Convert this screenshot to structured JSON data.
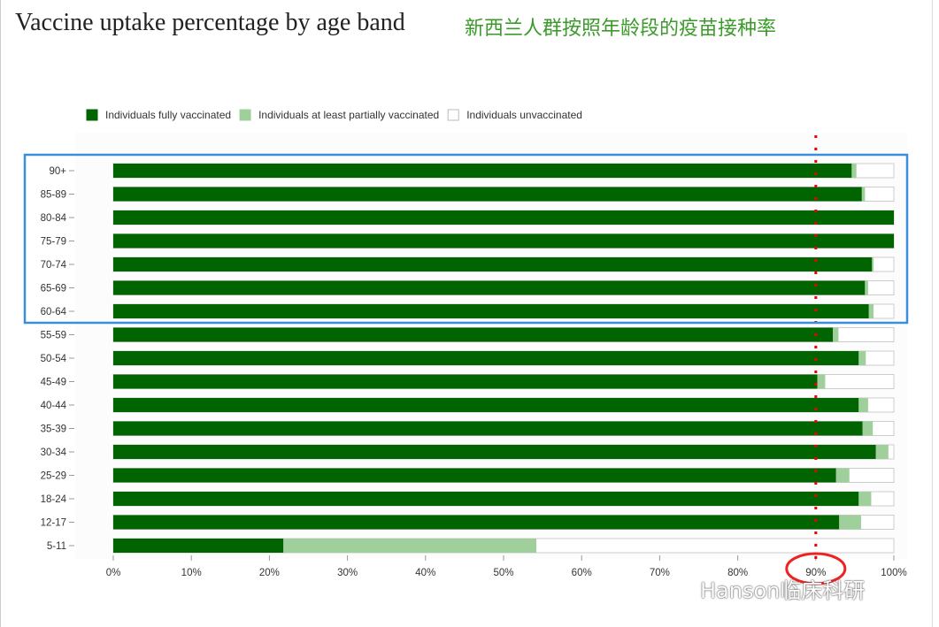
{
  "title": "Vaccine uptake percentage by age band",
  "subtitle": "新西兰人群按照年龄段的疫苗接种率",
  "watermark": "Hanson临床科研",
  "chart_data": {
    "type": "bar",
    "orientation": "horizontal",
    "stacked": true,
    "title": "Vaccine uptake percentage by age band",
    "categories": [
      "90+",
      "85-89",
      "80-84",
      "75-79",
      "70-74",
      "65-69",
      "60-64",
      "55-59",
      "50-54",
      "45-49",
      "40-44",
      "35-39",
      "30-34",
      "25-29",
      "18-24",
      "12-17",
      "5-11"
    ],
    "series": [
      {
        "name": "Individuals fully vaccinated",
        "color": "#006400",
        "values": [
          94.6,
          95.9,
          100,
          100,
          97.2,
          96.3,
          96.8,
          92.2,
          95.5,
          90.2,
          95.5,
          96.0,
          97.7,
          92.6,
          95.5,
          93.0,
          21.8
        ]
      },
      {
        "name": "Individuals at least partially vaccinated",
        "color": "#9fcf9a",
        "values": [
          0.6,
          0.4,
          0,
          0,
          0.2,
          0.4,
          0.6,
          0.7,
          0.9,
          1.0,
          1.2,
          1.3,
          1.6,
          1.7,
          1.6,
          2.8,
          32.4
        ]
      },
      {
        "name": "Individuals unvaccinated",
        "color": "#ffffff",
        "values": [
          4.8,
          3.7,
          0,
          0,
          2.6,
          3.3,
          2.6,
          7.1,
          3.6,
          8.8,
          3.3,
          2.7,
          0.7,
          5.7,
          2.9,
          4.2,
          45.8
        ]
      }
    ],
    "xticks": [
      "0%",
      "10%",
      "20%",
      "30%",
      "40%",
      "50%",
      "60%",
      "70%",
      "80%",
      "90%",
      "100%"
    ],
    "xlim": [
      0,
      100
    ],
    "legend": "top-left",
    "annotations": {
      "reference_line_pct": 90,
      "highlight_group": [
        "90+",
        "85-89",
        "80-84",
        "75-79",
        "70-74",
        "65-69",
        "60-64"
      ],
      "circled_tick": "90%"
    }
  }
}
